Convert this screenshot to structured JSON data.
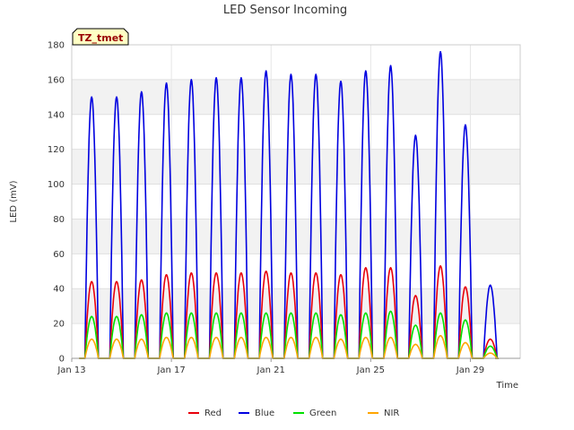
{
  "chart_data": {
    "type": "line",
    "title": "LED Sensor Incoming",
    "xlabel": "Time",
    "ylabel": "LED (mV)",
    "ylim": [
      0,
      180
    ],
    "yticks": [
      0,
      20,
      40,
      60,
      80,
      100,
      120,
      140,
      160,
      180
    ],
    "xlim": [
      13,
      31
    ],
    "xticks": [
      {
        "value": 13,
        "label": "Jan 13"
      },
      {
        "value": 17,
        "label": "Jan 17"
      },
      {
        "value": 21,
        "label": "Jan 21"
      },
      {
        "value": 25,
        "label": "Jan 25"
      },
      {
        "value": 29,
        "label": "Jan 29"
      }
    ],
    "station_tag": "TZ_tmet",
    "grid": true,
    "legend_position": "bottom",
    "day_centers": [
      13.8,
      14.8,
      15.8,
      16.8,
      17.8,
      18.8,
      19.8,
      20.8,
      21.8,
      22.8,
      23.8,
      24.8,
      25.8,
      26.8,
      27.8,
      28.8,
      29.8
    ],
    "series": [
      {
        "name": "Red",
        "color": "#e8000b",
        "daily_peaks": [
          44,
          44,
          45,
          48,
          49,
          49,
          49,
          50,
          49,
          49,
          48,
          52,
          52,
          36,
          53,
          41,
          11
        ]
      },
      {
        "name": "Blue",
        "color": "#0000e0",
        "daily_peaks": [
          150,
          150,
          153,
          158,
          160,
          161,
          161,
          165,
          163,
          163,
          159,
          165,
          168,
          128,
          176,
          134,
          42
        ]
      },
      {
        "name": "Green",
        "color": "#00e000",
        "daily_peaks": [
          24,
          24,
          25,
          26,
          26,
          26,
          26,
          26,
          26,
          26,
          25,
          26,
          27,
          19,
          26,
          22,
          7
        ]
      },
      {
        "name": "NIR",
        "color": "#ffa500",
        "daily_peaks": [
          11,
          11,
          11,
          12,
          12,
          12,
          12,
          12,
          12,
          12,
          11,
          12,
          12,
          8,
          13,
          9,
          3
        ]
      }
    ]
  }
}
